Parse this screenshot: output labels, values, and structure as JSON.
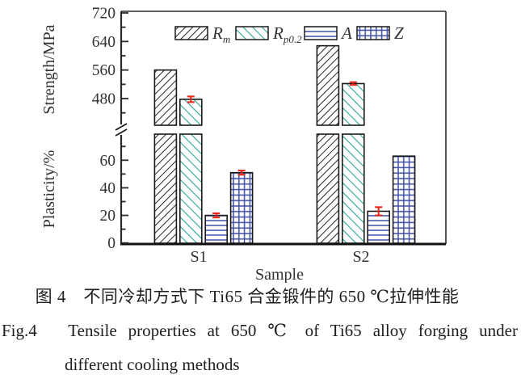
{
  "figure": {
    "caption_zh": "图 4　不同冷却方式下 Ti65 合金锻件的 650 ℃拉伸性能",
    "caption_en_line1": "Fig.4　Tensile properties at 650 ℃ of Ti65 alloy forging under",
    "caption_en_line2": "different cooling methods"
  },
  "chart_data": {
    "type": "bar",
    "broken_axis": true,
    "xlabel": "Sample",
    "categories": [
      "S1",
      "S2"
    ],
    "axes": {
      "strength": {
        "label": "Strength/MPa",
        "major_ticks": [
          480,
          560,
          640,
          720
        ],
        "minor_ticks": [
          440,
          520,
          600,
          680
        ],
        "range_shown": [
          420,
          720
        ]
      },
      "plasticity": {
        "label": "Plasticity/%",
        "major_ticks": [
          0,
          20,
          40,
          60
        ],
        "minor_ticks": [
          10,
          30,
          50,
          70
        ],
        "range_shown": [
          0,
          78
        ]
      }
    },
    "series": [
      {
        "name": "Rm",
        "legend_main": "R",
        "legend_sub": "m",
        "axis": "strength",
        "values": [
          560,
          628
        ],
        "errors": [
          0,
          0
        ],
        "pattern": "diagonal-forward",
        "pattern_color": "#1a1a1a"
      },
      {
        "name": "Rp0.2",
        "legend_main": "R",
        "legend_sub": "p0.2",
        "axis": "strength",
        "values": [
          478,
          522
        ],
        "errors": [
          8,
          4
        ],
        "pattern": "diagonal-back",
        "pattern_color": "#2ba59a"
      },
      {
        "name": "A",
        "legend_main": "A",
        "legend_sub": "",
        "axis": "plasticity",
        "values": [
          20,
          23
        ],
        "errors": [
          1.5,
          3
        ],
        "pattern": "horizontal-lines",
        "pattern_color": "#3e4fa5"
      },
      {
        "name": "Z",
        "legend_main": "Z",
        "legend_sub": "",
        "axis": "plasticity",
        "values": [
          51,
          63
        ],
        "errors": [
          1.5,
          0
        ],
        "pattern": "grid",
        "pattern_color": "#3e4fa5"
      }
    ],
    "error_bar_color": "#e52316",
    "legend_position": "top-inside"
  }
}
